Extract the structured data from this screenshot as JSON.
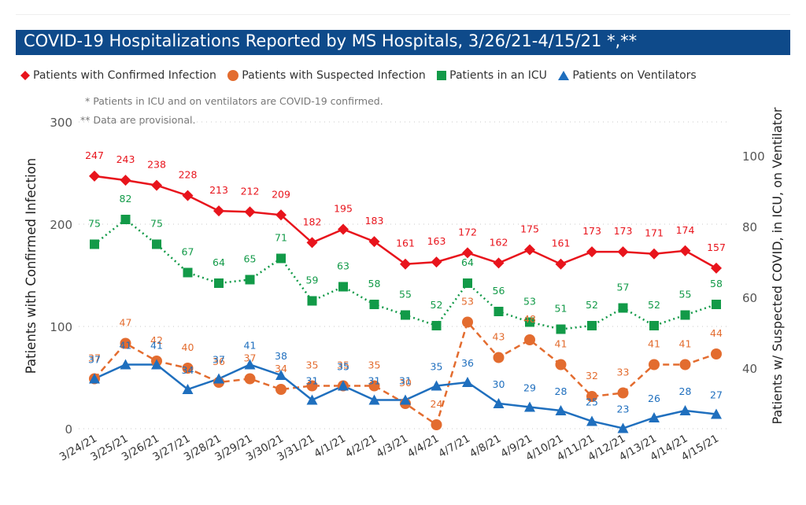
{
  "title": "COVID-19 Hospitalizations Reported by MS Hospitals, 3/26/21-4/15/21 *,**",
  "notes": {
    "icu": "* Patients in ICU and on ventilators are COVID-19 confirmed.",
    "provisional": "** Data are provisional."
  },
  "colors": {
    "title_bg": "#0e4a8a",
    "confirmed": "#e8141c",
    "suspected": "#e36c2f",
    "icu": "#129a48",
    "ventilators": "#1f6fbe"
  },
  "chart_data": {
    "type": "line",
    "categories": [
      "3/24/21",
      "3/25/21",
      "3/26/21",
      "3/27/21",
      "3/28/21",
      "3/29/21",
      "3/30/21",
      "3/31/21",
      "4/1/21",
      "4/2/21",
      "4/3/21",
      "4/4/21",
      "4/7/21",
      "4/8/21",
      "4/9/21",
      "4/10/21",
      "4/11/21",
      "4/12/21",
      "4/13/21",
      "4/14/21",
      "4/15/21"
    ],
    "ylabel": "Patients with Confirmed Infection",
    "y2label": "Patients w/ Suspected COVID, in ICU, on Ventilator",
    "ylim": [
      0,
      300
    ],
    "yticks": [
      0,
      100,
      200,
      300
    ],
    "y2lim": [
      25,
      110
    ],
    "y2ticks": [
      40,
      60,
      80,
      100
    ],
    "grid": "dotted horizontal",
    "legend_position": "top-left",
    "series": [
      {
        "name": "Patients with Confirmed Infection",
        "axis": "left",
        "marker": "diamond",
        "line": "solid",
        "color": "#e8141c",
        "values": [
          247,
          243,
          238,
          228,
          213,
          212,
          209,
          182,
          195,
          183,
          161,
          163,
          172,
          162,
          175,
          161,
          173,
          173,
          171,
          174,
          157
        ]
      },
      {
        "name": "Patients with Suspected Infection",
        "axis": "right",
        "marker": "circle",
        "line": "dashed",
        "color": "#e36c2f",
        "values": [
          37,
          47,
          42,
          40,
          36,
          37,
          34,
          35,
          35,
          35,
          30,
          24,
          53,
          43,
          48,
          41,
          32,
          33,
          41,
          41,
          44
        ]
      },
      {
        "name": "Patients in an ICU",
        "axis": "right",
        "marker": "square",
        "line": "dotted",
        "color": "#129a48",
        "values": [
          75,
          82,
          75,
          67,
          64,
          65,
          71,
          59,
          63,
          58,
          55,
          52,
          64,
          56,
          53,
          51,
          52,
          57,
          52,
          55,
          58
        ]
      },
      {
        "name": "Patients on Ventilators",
        "axis": "right",
        "marker": "triangle",
        "line": "solid",
        "color": "#1f6fbe",
        "values": [
          37,
          41,
          41,
          34,
          37,
          41,
          38,
          31,
          35,
          31,
          31,
          35,
          36,
          30,
          29,
          28,
          25,
          23,
          26,
          28,
          27
        ]
      }
    ]
  }
}
